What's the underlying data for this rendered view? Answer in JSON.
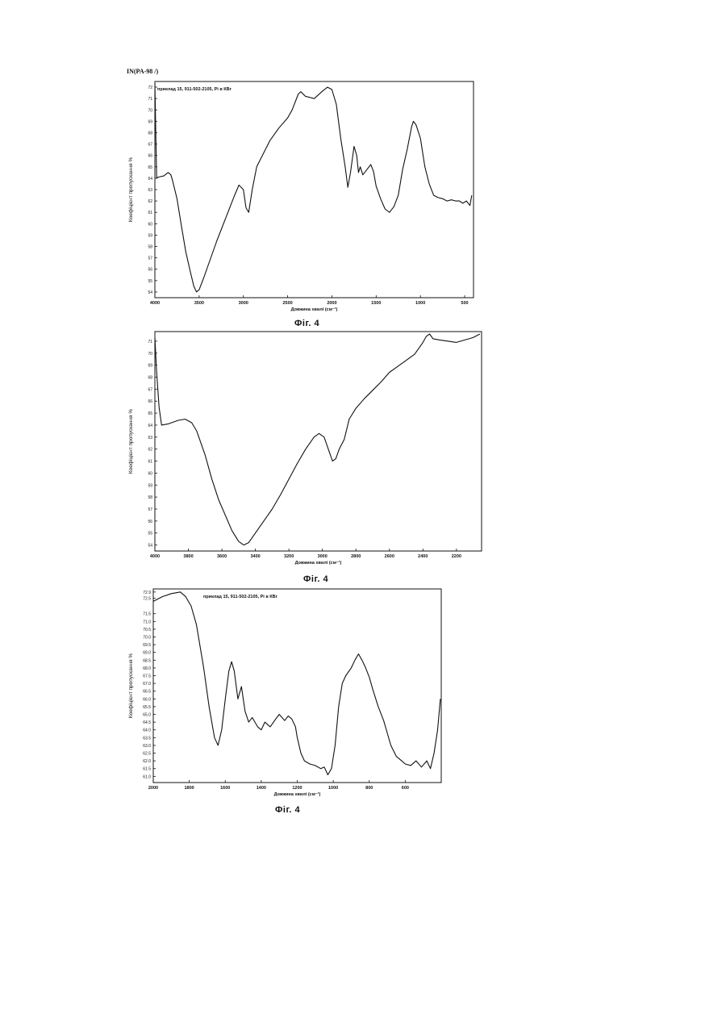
{
  "header": {
    "code": "IN(PA-98 /)"
  },
  "figures": [
    {
      "caption": "Фіг. 4",
      "chart_data": {
        "type": "line",
        "title": "приклад 15, 911-502-2105, Рі в КВr",
        "xlabel": "Довжина хвилі (см⁻¹)",
        "ylabel": "Коефіцієнт пропускання %",
        "xlim": [
          4000,
          400
        ],
        "ylim": [
          53.5,
          72.5
        ],
        "x_ticks": [
          4000,
          3500,
          3000,
          2500,
          2000,
          1500,
          1000,
          500
        ],
        "y_ticks": [
          54,
          55,
          56,
          57,
          58,
          59,
          60,
          61,
          62,
          63,
          64,
          65,
          66,
          67,
          68,
          69,
          70,
          71,
          72
        ],
        "grid": false,
        "series": [
          {
            "points": [
              [
                4000,
                72.3
              ],
              [
                3990,
                68
              ],
              [
                3980,
                64
              ],
              [
                3960,
                64.1
              ],
              [
                3900,
                64.2
              ],
              [
                3850,
                64.5
              ],
              [
                3820,
                64.3
              ],
              [
                3800,
                63.8
              ],
              [
                3750,
                62.2
              ],
              [
                3700,
                59.8
              ],
              [
                3650,
                57.5
              ],
              [
                3600,
                55.8
              ],
              [
                3560,
                54.5
              ],
              [
                3530,
                54.0
              ],
              [
                3500,
                54.2
              ],
              [
                3450,
                55.2
              ],
              [
                3400,
                56.3
              ],
              [
                3300,
                58.5
              ],
              [
                3200,
                60.5
              ],
              [
                3100,
                62.5
              ],
              [
                3050,
                63.4
              ],
              [
                3000,
                63.0
              ],
              [
                2970,
                61.4
              ],
              [
                2940,
                61.0
              ],
              [
                2900,
                63.0
              ],
              [
                2850,
                65.0
              ],
              [
                2700,
                67.3
              ],
              [
                2600,
                68.4
              ],
              [
                2500,
                69.3
              ],
              [
                2450,
                70.0
              ],
              [
                2380,
                71.4
              ],
              [
                2350,
                71.6
              ],
              [
                2300,
                71.2
              ],
              [
                2200,
                71.0
              ],
              [
                2100,
                71.7
              ],
              [
                2050,
                72.0
              ],
              [
                2000,
                71.8
              ],
              [
                1950,
                70.5
              ],
              [
                1900,
                67.5
              ],
              [
                1850,
                65.0
              ],
              [
                1820,
                63.2
              ],
              [
                1790,
                64.5
              ],
              [
                1750,
                66.8
              ],
              [
                1720,
                66.0
              ],
              [
                1700,
                64.5
              ],
              [
                1680,
                65.0
              ],
              [
                1650,
                64.3
              ],
              [
                1600,
                64.8
              ],
              [
                1560,
                65.2
              ],
              [
                1530,
                64.6
              ],
              [
                1500,
                63.3
              ],
              [
                1450,
                62.2
              ],
              [
                1400,
                61.3
              ],
              [
                1350,
                61.0
              ],
              [
                1300,
                61.5
              ],
              [
                1250,
                62.5
              ],
              [
                1200,
                64.8
              ],
              [
                1150,
                66.5
              ],
              [
                1100,
                68.5
              ],
              [
                1080,
                69.0
              ],
              [
                1050,
                68.7
              ],
              [
                1000,
                67.5
              ],
              [
                950,
                65.0
              ],
              [
                900,
                63.5
              ],
              [
                850,
                62.5
              ],
              [
                800,
                62.3
              ],
              [
                750,
                62.2
              ],
              [
                700,
                62.0
              ],
              [
                650,
                62.1
              ],
              [
                600,
                62.0
              ],
              [
                560,
                62.0
              ],
              [
                520,
                61.8
              ],
              [
                480,
                62.0
              ],
              [
                440,
                61.6
              ],
              [
                420,
                62.5
              ]
            ]
          }
        ]
      }
    },
    {
      "caption": "Фіг. 4",
      "chart_data": {
        "type": "line",
        "title": "",
        "xlabel": "Довжина хвилі (см⁻¹)",
        "ylabel": "Коефіцієнт пропускання %",
        "xlim": [
          4000,
          2050
        ],
        "ylim": [
          53.5,
          71.8
        ],
        "x_ticks": [
          4000,
          3800,
          3600,
          3400,
          3200,
          3000,
          2800,
          2600,
          2400,
          2200
        ],
        "y_ticks": [
          54,
          55,
          56,
          57,
          58,
          59,
          60,
          61,
          62,
          63,
          64,
          65,
          66,
          67,
          68,
          69,
          70,
          71
        ],
        "grid": false,
        "series": [
          {
            "points": [
              [
                4000,
                71.3
              ],
              [
                3990,
                68.5
              ],
              [
                3975,
                65.5
              ],
              [
                3960,
                64.0
              ],
              [
                3920,
                64.1
              ],
              [
                3860,
                64.4
              ],
              [
                3820,
                64.5
              ],
              [
                3780,
                64.2
              ],
              [
                3750,
                63.5
              ],
              [
                3700,
                61.5
              ],
              [
                3660,
                59.5
              ],
              [
                3620,
                57.8
              ],
              [
                3580,
                56.5
              ],
              [
                3540,
                55.2
              ],
              [
                3500,
                54.3
              ],
              [
                3470,
                54.0
              ],
              [
                3440,
                54.2
              ],
              [
                3400,
                55.0
              ],
              [
                3350,
                56.0
              ],
              [
                3300,
                57.0
              ],
              [
                3250,
                58.2
              ],
              [
                3200,
                59.5
              ],
              [
                3150,
                60.8
              ],
              [
                3100,
                62.0
              ],
              [
                3050,
                63.0
              ],
              [
                3020,
                63.3
              ],
              [
                2990,
                63.0
              ],
              [
                2960,
                61.8
              ],
              [
                2940,
                61.0
              ],
              [
                2920,
                61.2
              ],
              [
                2900,
                62.0
              ],
              [
                2870,
                62.8
              ],
              [
                2840,
                64.5
              ],
              [
                2800,
                65.4
              ],
              [
                2750,
                66.2
              ],
              [
                2700,
                66.9
              ],
              [
                2650,
                67.6
              ],
              [
                2600,
                68.4
              ],
              [
                2550,
                68.9
              ],
              [
                2500,
                69.4
              ],
              [
                2450,
                69.9
              ],
              [
                2420,
                70.5
              ],
              [
                2400,
                70.9
              ],
              [
                2380,
                71.4
              ],
              [
                2360,
                71.6
              ],
              [
                2340,
                71.2
              ],
              [
                2300,
                71.1
              ],
              [
                2250,
                71.0
              ],
              [
                2200,
                70.9
              ],
              [
                2150,
                71.1
              ],
              [
                2100,
                71.3
              ],
              [
                2060,
                71.6
              ]
            ]
          }
        ]
      }
    },
    {
      "caption": "Фіг. 4",
      "chart_data": {
        "type": "line",
        "title": "приклад 15, 911-502-2105, Рі в КВr",
        "xlabel": "Довжина хвилі (см⁻¹)",
        "ylabel": "Коефіцієнт пропускання %",
        "xlim": [
          2000,
          400
        ],
        "ylim": [
          60.6,
          73.1
        ],
        "x_ticks": [
          2000,
          1800,
          1600,
          1400,
          1200,
          1000,
          800,
          600
        ],
        "y_ticks": [
          "72.9",
          "72.5",
          "71.5",
          "71.0",
          "70.5",
          "70.0",
          "69.5",
          "69.0",
          "68.5",
          "68.0",
          "67.5",
          "67.0",
          "66.5",
          "66.0",
          "65.5",
          "65.0",
          "64.5",
          "64.0",
          "63.5",
          "63.0",
          "62.5",
          "62.0",
          "61.5",
          "61.0"
        ],
        "grid": false,
        "series": [
          {
            "points": [
              [
                2000,
                72.3
              ],
              [
                1950,
                72.6
              ],
              [
                1900,
                72.8
              ],
              [
                1850,
                72.9
              ],
              [
                1820,
                72.6
              ],
              [
                1790,
                72.0
              ],
              [
                1760,
                70.8
              ],
              [
                1720,
                68.0
              ],
              [
                1690,
                65.5
              ],
              [
                1660,
                63.5
              ],
              [
                1640,
                63.0
              ],
              [
                1620,
                64.0
              ],
              [
                1600,
                66.0
              ],
              [
                1580,
                67.8
              ],
              [
                1565,
                68.4
              ],
              [
                1550,
                67.8
              ],
              [
                1530,
                66.0
              ],
              [
                1510,
                66.8
              ],
              [
                1490,
                65.2
              ],
              [
                1470,
                64.5
              ],
              [
                1450,
                64.8
              ],
              [
                1420,
                64.2
              ],
              [
                1400,
                64.0
              ],
              [
                1380,
                64.5
              ],
              [
                1350,
                64.2
              ],
              [
                1320,
                64.7
              ],
              [
                1300,
                65.0
              ],
              [
                1270,
                64.6
              ],
              [
                1250,
                64.9
              ],
              [
                1230,
                64.7
              ],
              [
                1210,
                64.2
              ],
              [
                1200,
                63.5
              ],
              [
                1180,
                62.5
              ],
              [
                1160,
                62.0
              ],
              [
                1130,
                61.8
              ],
              [
                1100,
                61.7
              ],
              [
                1070,
                61.5
              ],
              [
                1050,
                61.6
              ],
              [
                1030,
                61.1
              ],
              [
                1010,
                61.5
              ],
              [
                990,
                63.0
              ],
              [
                970,
                65.5
              ],
              [
                950,
                67.0
              ],
              [
                930,
                67.5
              ],
              [
                900,
                68.0
              ],
              [
                880,
                68.5
              ],
              [
                860,
                68.9
              ],
              [
                840,
                68.5
              ],
              [
                820,
                68.0
              ],
              [
                800,
                67.4
              ],
              [
                780,
                66.6
              ],
              [
                750,
                65.5
              ],
              [
                720,
                64.6
              ],
              [
                700,
                63.8
              ],
              [
                680,
                63.0
              ],
              [
                650,
                62.3
              ],
              [
                620,
                62.0
              ],
              [
                600,
                61.8
              ],
              [
                570,
                61.7
              ],
              [
                540,
                62.0
              ],
              [
                510,
                61.6
              ],
              [
                480,
                62.0
              ],
              [
                460,
                61.5
              ],
              [
                440,
                62.5
              ],
              [
                420,
                64.0
              ],
              [
                405,
                66.0
              ]
            ]
          }
        ]
      }
    }
  ]
}
